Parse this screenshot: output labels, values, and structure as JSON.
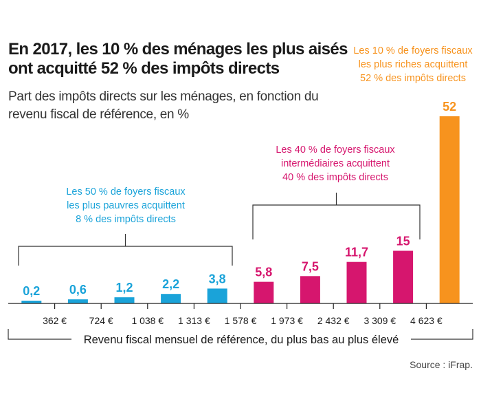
{
  "title": "En 2017, les 10 % des ménages les plus aisés ont acquitté 52 % des impôts directs",
  "subtitle": "Part des impôts directs sur les ménages, en fonction du revenu fiscal de référence, en %",
  "source": "Source : iFrap.",
  "colors": {
    "poorest": "#1aa3d9",
    "middle": "#d6166e",
    "richest": "#f7931e",
    "axis": "#222222"
  },
  "groups": [
    {
      "name": "poorest",
      "lines": [
        "Les 50 % de foyers fiscaux",
        "les plus pauvres acquittent",
        "8 % des impôts directs"
      ]
    },
    {
      "name": "middle",
      "lines": [
        "Les 40 % de foyers fiscaux",
        "intermédiaires acquittent",
        "40 % des impôts directs"
      ]
    },
    {
      "name": "richest",
      "lines": [
        "Les 10 % de foyers fiscaux",
        "les plus riches acquittent",
        "52 % des impôts directs"
      ]
    }
  ],
  "chart_data": {
    "type": "bar",
    "title": "En 2017, les 10 % des ménages les plus aisés ont acquitté 52 % des impôts directs",
    "subtitle": "Part des impôts directs sur les ménages, en fonction du revenu fiscal de référence, en %",
    "xlabel": "Revenu fiscal mensuel de référence, du plus bas au plus élevé",
    "ylabel": "",
    "boundaries": [
      "362 €",
      "724 €",
      "1 038 €",
      "1 313 €",
      "1 578 €",
      "1 973 €",
      "2 432 €",
      "3 309 €",
      "4 623 €"
    ],
    "values": [
      0.2,
      0.6,
      1.2,
      2.2,
      3.8,
      5.8,
      7.5,
      11.7,
      15,
      52
    ],
    "value_labels": [
      "0,2",
      "0,6",
      "1,2",
      "2,2",
      "3,8",
      "5,8",
      "7,5",
      "11,7",
      "15",
      "52"
    ],
    "bar_groups": [
      "poorest",
      "poorest",
      "poorest",
      "poorest",
      "poorest",
      "middle",
      "middle",
      "middle",
      "middle",
      "richest"
    ],
    "ylim": [
      0,
      52
    ],
    "grid": false
  }
}
